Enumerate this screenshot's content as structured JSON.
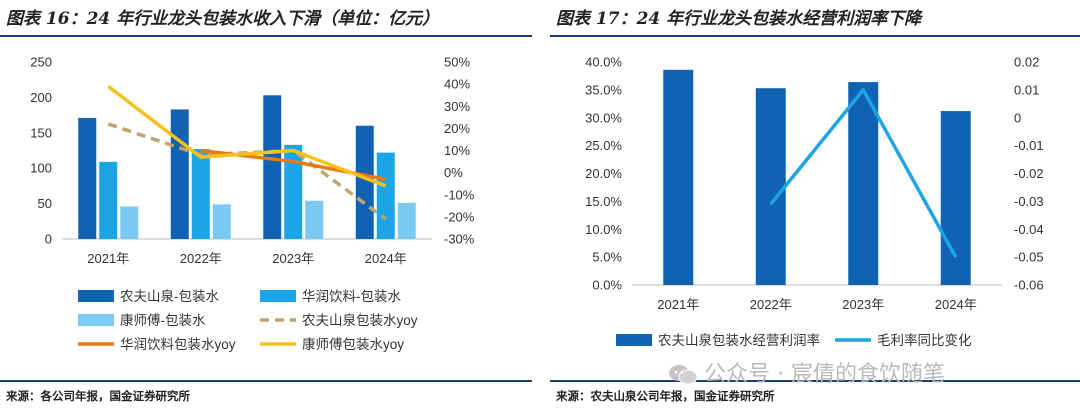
{
  "left_title": "图表 16：24 年行业龙头包装水收入下滑（单位：亿元）",
  "right_title": "图表 17：24 年行业龙头包装水经营利润率下降",
  "left_source": "来源：各公司年报，国金证券研究所",
  "right_source": "来源：农夫山泉公司年报，国金证券研究所",
  "watermark": "公众号 · 宸倩的食饮随笔",
  "chart_data": [
    {
      "type": "bar",
      "categories": [
        "2021年",
        "2022年",
        "2023年",
        "2024年"
      ],
      "ylim": [
        0,
        250
      ],
      "yticks": [
        "0",
        "50",
        "100",
        "150",
        "200",
        "250"
      ],
      "y2lim": [
        -30,
        50
      ],
      "y2ticks": [
        "-30%",
        "-20%",
        "-10%",
        "0%",
        "10%",
        "20%",
        "30%",
        "40%",
        "50%"
      ],
      "series": [
        {
          "name": "农夫山泉-包装水",
          "kind": "bar",
          "axis": "left",
          "color": "#1063b3",
          "values": [
            171,
            183,
            203,
            160
          ]
        },
        {
          "name": "华润饮料-包装水",
          "kind": "bar",
          "axis": "left",
          "color": "#1ba5e6",
          "values": [
            109,
            127,
            133,
            122
          ]
        },
        {
          "name": "康师傅-包装水",
          "kind": "bar",
          "axis": "left",
          "color": "#7ccaf3",
          "values": [
            46,
            49,
            54,
            51
          ]
        },
        {
          "name": "农夫山泉包装水yoy",
          "kind": "line",
          "axis": "right",
          "color": "#c2a36b",
          "dashed": true,
          "values": [
            22,
            8,
            10,
            -21
          ]
        },
        {
          "name": "华润饮料包装水yoy",
          "kind": "line",
          "axis": "right",
          "color": "#e97813",
          "dashed": false,
          "values": [
            null,
            10,
            5,
            -3
          ]
        },
        {
          "name": "康师傅包装水yoy",
          "kind": "line",
          "axis": "right",
          "color": "#f6c11d",
          "dashed": false,
          "values": [
            39,
            7,
            10,
            -6
          ]
        }
      ]
    },
    {
      "type": "bar",
      "categories": [
        "2021年",
        "2022年",
        "2023年",
        "2024年"
      ],
      "ylim": [
        0,
        40
      ],
      "yticks": [
        "0.0%",
        "5.0%",
        "10.0%",
        "15.0%",
        "20.0%",
        "25.0%",
        "30.0%",
        "35.0%",
        "40.0%"
      ],
      "y2lim": [
        -0.06,
        0.02
      ],
      "y2ticks": [
        "-0.06",
        "-0.05",
        "-0.04",
        "-0.03",
        "-0.02",
        "-0.01",
        "0",
        "0.01",
        "0.02"
      ],
      "series": [
        {
          "name": "农夫山泉包装水经营利润率",
          "kind": "bar",
          "axis": "left",
          "color": "#1063b3",
          "values": [
            38.6,
            35.3,
            36.4,
            31.2
          ]
        },
        {
          "name": "毛利率同比变化",
          "kind": "line",
          "axis": "right",
          "color": "#1ba5e6",
          "dashed": false,
          "values": [
            null,
            -0.031,
            0.01,
            -0.05
          ]
        }
      ]
    }
  ]
}
